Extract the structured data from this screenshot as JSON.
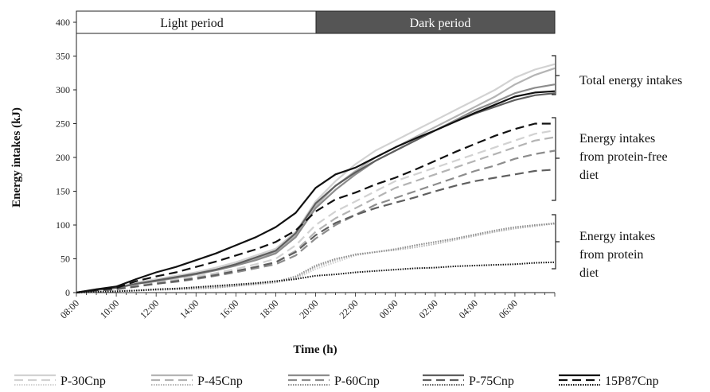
{
  "chart_data": {
    "type": "line",
    "xlabel": "Time (h)",
    "ylabel": "Energy intakes (kJ)",
    "ylim": [
      0,
      400
    ],
    "yticks": [
      0,
      50,
      100,
      150,
      200,
      250,
      300,
      350,
      400
    ],
    "x_hours": [
      0,
      1,
      2,
      3,
      4,
      5,
      6,
      7,
      8,
      9,
      10,
      11,
      12,
      13,
      14,
      15,
      16,
      17,
      18,
      19,
      20,
      21,
      22,
      23,
      24
    ],
    "xticks": [
      "08:00",
      "10:00",
      "12:00",
      "14:00",
      "16:00",
      "18:00",
      "20:00",
      "22:00",
      "00:00",
      "02:00",
      "04:00",
      "06:00"
    ],
    "periods": [
      {
        "label": "Light period",
        "fill": "#ffffff",
        "text_color": "#111111"
      },
      {
        "label": "Dark period",
        "fill": "#555555",
        "text_color": "#ffffff"
      }
    ],
    "annotations": [
      {
        "lines": [
          "Total energy intakes"
        ]
      },
      {
        "lines": [
          "Energy intakes",
          "from protein-free",
          "diet"
        ]
      },
      {
        "lines": [
          "Energy intakes",
          "from protein",
          "diet"
        ]
      }
    ],
    "series": [
      {
        "name": "P-30Cnp",
        "color": "#d2d2d2",
        "groups": {
          "total": [
            0,
            5,
            8,
            15,
            20,
            25,
            30,
            37,
            45,
            55,
            65,
            90,
            135,
            165,
            190,
            210,
            225,
            240,
            255,
            270,
            285,
            300,
            318,
            330,
            338
          ],
          "free": [
            0,
            4,
            6,
            12,
            16,
            20,
            24,
            29,
            35,
            42,
            50,
            70,
            100,
            120,
            135,
            150,
            165,
            175,
            185,
            195,
            205,
            215,
            225,
            235,
            240
          ],
          "protein": [
            0,
            1,
            2,
            3,
            4,
            5,
            6,
            8,
            10,
            13,
            15,
            20,
            35,
            45,
            55,
            60,
            65,
            70,
            75,
            80,
            85,
            90,
            95,
            98,
            102
          ]
        }
      },
      {
        "name": "P-45Cnp",
        "color": "#b4b4b4",
        "groups": {
          "total": [
            0,
            4,
            7,
            13,
            18,
            23,
            28,
            34,
            42,
            50,
            60,
            85,
            128,
            158,
            180,
            200,
            215,
            230,
            245,
            260,
            275,
            290,
            308,
            322,
            332
          ],
          "free": [
            0,
            3,
            5,
            10,
            14,
            18,
            22,
            27,
            32,
            38,
            45,
            62,
            90,
            110,
            125,
            140,
            155,
            165,
            175,
            185,
            195,
            205,
            215,
            225,
            230
          ],
          "protein": [
            0,
            1,
            2,
            3,
            4,
            5,
            6,
            7,
            10,
            12,
            15,
            22,
            38,
            48,
            57,
            60,
            63,
            67,
            72,
            78,
            84,
            90,
            95,
            99,
            103
          ]
        }
      },
      {
        "name": "P-60Cnp",
        "color": "#8c8c8c",
        "groups": {
          "total": [
            0,
            4,
            7,
            13,
            17,
            22,
            27,
            33,
            40,
            48,
            58,
            82,
            125,
            152,
            175,
            195,
            210,
            225,
            240,
            255,
            270,
            282,
            295,
            303,
            308
          ],
          "free": [
            0,
            3,
            5,
            9,
            13,
            16,
            20,
            25,
            30,
            36,
            42,
            55,
            80,
            100,
            115,
            130,
            140,
            150,
            160,
            170,
            180,
            188,
            198,
            205,
            210
          ],
          "protein": [
            0,
            1,
            2,
            3,
            4,
            5,
            6,
            8,
            10,
            13,
            16,
            24,
            40,
            50,
            56,
            60,
            64,
            70,
            75,
            80,
            86,
            92,
            97,
            100,
            102
          ]
        }
      },
      {
        "name": "P-75Cnp",
        "color": "#5f5f5f",
        "groups": {
          "total": [
            0,
            4,
            7,
            13,
            18,
            23,
            28,
            34,
            42,
            52,
            62,
            88,
            132,
            158,
            178,
            195,
            210,
            225,
            240,
            253,
            265,
            275,
            285,
            292,
            295
          ],
          "free": [
            0,
            3,
            5,
            9,
            13,
            17,
            21,
            26,
            32,
            38,
            45,
            60,
            85,
            103,
            115,
            125,
            133,
            141,
            150,
            158,
            165,
            170,
            175,
            180,
            182
          ]
        }
      },
      {
        "name": "15P87Cnp",
        "color": "#111111",
        "groups": {
          "total": [
            0,
            5,
            9,
            20,
            30,
            38,
            48,
            58,
            70,
            82,
            97,
            118,
            155,
            175,
            185,
            200,
            215,
            228,
            240,
            253,
            266,
            278,
            290,
            296,
            298
          ],
          "free": [
            0,
            4,
            7,
            17,
            24,
            30,
            38,
            46,
            55,
            64,
            75,
            92,
            120,
            138,
            148,
            160,
            170,
            182,
            195,
            208,
            220,
            232,
            242,
            250,
            250
          ],
          "protein": [
            0,
            1,
            2,
            3,
            5,
            6,
            8,
            10,
            12,
            14,
            17,
            20,
            25,
            27,
            30,
            32,
            34,
            36,
            37,
            39,
            40,
            41,
            42,
            44,
            45
          ]
        }
      }
    ],
    "legend": [
      "P-30Cnp",
      "P-45Cnp",
      "P-60Cnp",
      "P-75Cnp",
      "15P87Cnp"
    ],
    "grid": false,
    "legend_position": "bottom"
  }
}
